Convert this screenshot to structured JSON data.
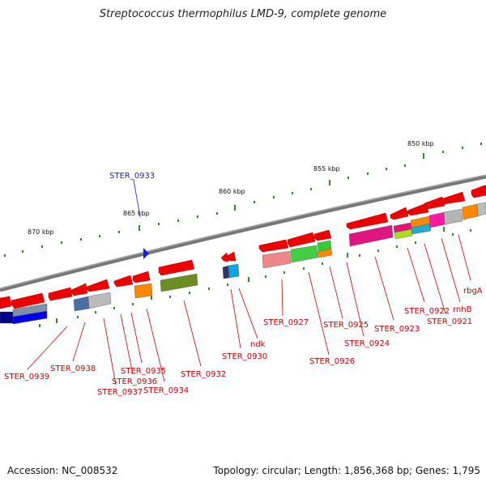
{
  "title": "Streptococcus thermophilus LMD-9, complete genome",
  "footer": {
    "accession": "Accession: NC_008532",
    "summary": "Topology: circular; Length: 1,856,368 bp; Genes: 1,795"
  },
  "scale_labels": [
    "850 kbp",
    "855 kbp",
    "860 kbp",
    "865 kbp",
    "870 kbp"
  ],
  "genes": [
    {
      "id": "STER_0939",
      "color": "#cc0000"
    },
    {
      "id": "STER_0938",
      "color": "#cc0000"
    },
    {
      "id": "STER_0937",
      "color": "#cc0000"
    },
    {
      "id": "STER_0936",
      "color": "#cc0000"
    },
    {
      "id": "STER_0935",
      "color": "#cc0000"
    },
    {
      "id": "STER_0934",
      "color": "#cc0000"
    },
    {
      "id": "STER_0933",
      "color": "#1a1aff"
    },
    {
      "id": "STER_0932",
      "color": "#cc0000"
    },
    {
      "id": "STER_0930",
      "color": "#cc0000"
    },
    {
      "id": "ndk",
      "color": "#cc0000"
    },
    {
      "id": "STER_0927",
      "color": "#cc0000"
    },
    {
      "id": "STER_0926",
      "color": "#cc0000"
    },
    {
      "id": "STER_0925",
      "color": "#cc0000"
    },
    {
      "id": "STER_0924",
      "color": "#cc0000"
    },
    {
      "id": "STER_0923",
      "color": "#cc0000"
    },
    {
      "id": "STER_0922",
      "color": "#cc0000"
    },
    {
      "id": "STER_0921",
      "color": "#cc0000"
    },
    {
      "id": "rnhB",
      "color": "#cc0000"
    },
    {
      "id": "rbgA",
      "color": "#cc0000"
    }
  ]
}
